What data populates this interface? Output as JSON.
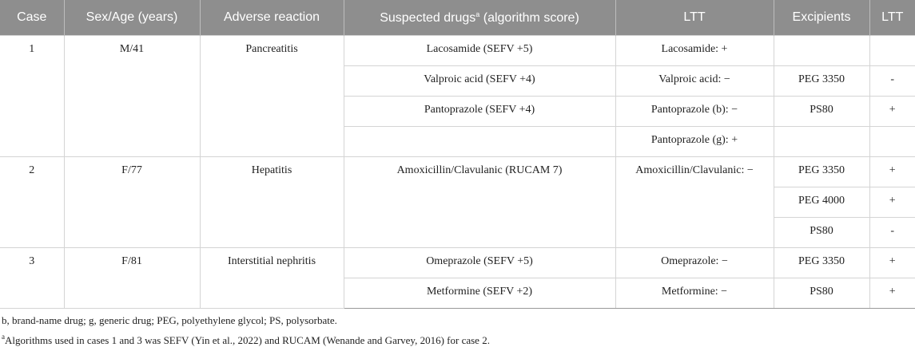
{
  "header": {
    "columns": [
      {
        "text": "Case"
      },
      {
        "text": "Sex/Age (years)"
      },
      {
        "text": "Adverse reaction"
      },
      {
        "text": "Suspected drugs",
        "sup": "a",
        "rest": " (algorithm score)"
      },
      {
        "text": "LTT"
      },
      {
        "text": "Excipients"
      },
      {
        "text": "LTT"
      }
    ]
  },
  "groups": [
    {
      "case": "1",
      "sex_age": "M/41",
      "reaction": "Pancreatitis",
      "drugs": [
        {
          "name": "Lacosamide (SEFV +5)",
          "ltt": "Lacosamide: +",
          "excipients": []
        },
        {
          "name": "Valproic acid (SEFV +4)",
          "ltt": "Valproic acid: −",
          "excipients": [
            {
              "name": "PEG 3350",
              "ltt": "-"
            }
          ]
        },
        {
          "name": "Pantoprazole (SEFV +4)",
          "ltt": "Pantoprazole (b): −",
          "excipients": [
            {
              "name": "PS80",
              "ltt": "+"
            }
          ]
        },
        {
          "name": null,
          "ltt": "Pantoprazole (g): +",
          "excipients": []
        }
      ]
    },
    {
      "case": "2",
      "sex_age": "F/77",
      "reaction": "Hepatitis",
      "drugs": [
        {
          "name": "Amoxicillin/Clavulanic (RUCAM 7)",
          "ltt": "Amoxicillin/Clavulanic: −",
          "excipients": [
            {
              "name": "PEG 3350",
              "ltt": "+"
            },
            {
              "name": "PEG 4000",
              "ltt": "+"
            },
            {
              "name": "PS80",
              "ltt": "-"
            }
          ]
        }
      ]
    },
    {
      "case": "3",
      "sex_age": "F/81",
      "reaction": "Interstitial nephritis",
      "drugs": [
        {
          "name": "Omeprazole (SEFV +5)",
          "ltt": "Omeprazole: −",
          "excipients": [
            {
              "name": "PEG 3350",
              "ltt": "+"
            }
          ]
        },
        {
          "name": "Metformine (SEFV +2)",
          "ltt": "Metformine: −",
          "excipients": [
            {
              "name": "PS80",
              "ltt": "+"
            }
          ]
        }
      ]
    }
  ],
  "footnotes": [
    {
      "text": "b, brand-name drug; g, generic drug; PEG, polyethylene glycol; PS, polysorbate."
    },
    {
      "sup": "a",
      "text": "Algorithms used in cases 1 and 3 was SEFV (Yin et al., 2022) and RUCAM (Wenande and Garvey, 2016) for case 2."
    }
  ]
}
